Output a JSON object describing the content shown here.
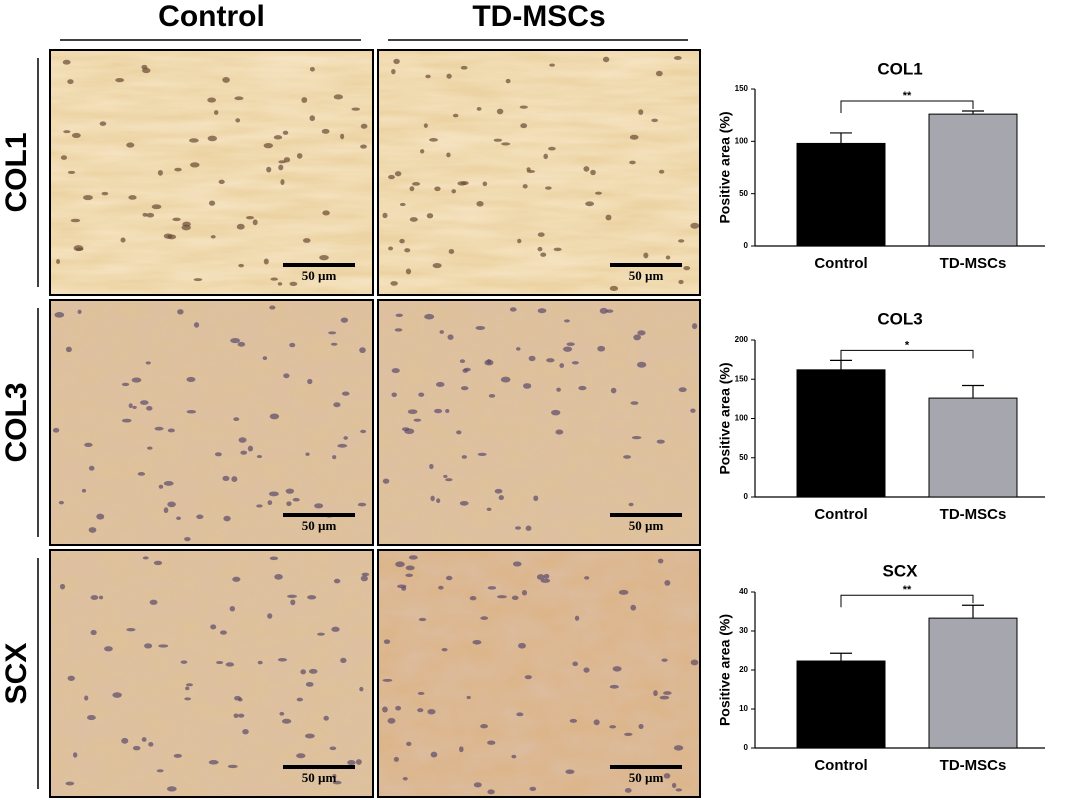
{
  "columns": [
    "Control",
    "TD-MSCs"
  ],
  "rows": [
    "COL1",
    "COL3",
    "SCX"
  ],
  "scale_bar": "50  µm",
  "chart_data": [
    {
      "type": "bar",
      "title": "COL1",
      "y_label": "Positive area (%)",
      "categories": [
        "Control",
        "TD-MSCs"
      ],
      "values": [
        98,
        126
      ],
      "errors": [
        10,
        3
      ],
      "colors": [
        "#000000",
        "#a6a6ae"
      ],
      "ylim": [
        0,
        150
      ],
      "yticks": [
        0,
        50,
        100,
        150
      ],
      "annotation": "**"
    },
    {
      "type": "bar",
      "title": "COL3",
      "y_label": "Positive area (%)",
      "categories": [
        "Control",
        "TD-MSCs"
      ],
      "values": [
        162,
        126
      ],
      "errors": [
        12,
        16
      ],
      "colors": [
        "#000000",
        "#a6a6ae"
      ],
      "ylim": [
        0,
        200
      ],
      "yticks": [
        0,
        50,
        100,
        150,
        200
      ],
      "annotation": "*"
    },
    {
      "type": "bar",
      "title": "SCX",
      "y_label": "Positive area (%)",
      "categories": [
        "Control",
        "TD-MSCs"
      ],
      "values": [
        22.3,
        33.3
      ],
      "errors": [
        2,
        3.3
      ],
      "colors": [
        "#000000",
        "#a6a6ae"
      ],
      "ylim": [
        0,
        40
      ],
      "yticks": [
        0,
        10,
        20,
        30,
        40
      ],
      "annotation": "**"
    }
  ]
}
